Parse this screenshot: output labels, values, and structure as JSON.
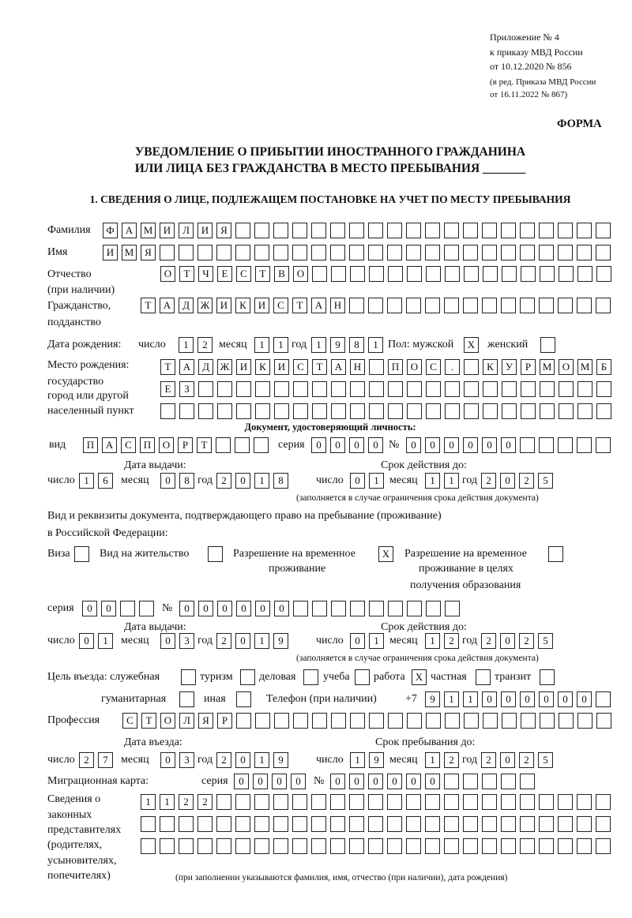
{
  "header": {
    "appendix": "Приложение № 4",
    "order": "к приказу МВД России",
    "order_date": "от 10.12.2020 № 856",
    "edition1": "(в ред. Приказа МВД России",
    "edition2": "от 16.11.2022 № 867)",
    "form_label": "ФОРМА",
    "title1": "УВЕДОМЛЕНИЕ О ПРИБЫТИИ ИНОСТРАННОГО ГРАЖДАНИНА",
    "title2": "ИЛИ ЛИЦА БЕЗ ГРАЖДАНСТВА В МЕСТО ПРЕБЫВАНИЯ _______"
  },
  "section1": {
    "heading": "1. СВЕДЕНИЯ О ЛИЦЕ, ПОДЛЕЖАЩЕМ ПОСТАНОВКЕ НА УЧЕТ ПО МЕСТУ ПРЕБЫВАНИЯ",
    "surname": {
      "label": "Фамилия",
      "boxes": [
        "Ф",
        "А",
        "М",
        "И",
        "Л",
        "И",
        "Я",
        "",
        "",
        "",
        "",
        "",
        "",
        "",
        "",
        "",
        "",
        "",
        "",
        "",
        "",
        "",
        "",
        "",
        "",
        "",
        ""
      ]
    },
    "name": {
      "label": "Имя",
      "boxes": [
        "И",
        "М",
        "Я",
        "",
        "",
        "",
        "",
        "",
        "",
        "",
        "",
        "",
        "",
        "",
        "",
        "",
        "",
        "",
        "",
        "",
        "",
        "",
        "",
        "",
        "",
        "",
        ""
      ]
    },
    "patronymic": {
      "label1": "Отчество",
      "label2": "(при наличии)",
      "boxes": [
        "О",
        "Т",
        "Ч",
        "Е",
        "С",
        "Т",
        "В",
        "О",
        "",
        "",
        "",
        "",
        "",
        "",
        "",
        "",
        "",
        "",
        "",
        "",
        "",
        "",
        "",
        ""
      ]
    },
    "citizenship": {
      "label1": "Гражданство,",
      "label2": "подданство",
      "boxes": [
        "Т",
        "А",
        "Д",
        "Ж",
        "И",
        "К",
        "И",
        "С",
        "Т",
        "А",
        "Н",
        "",
        "",
        "",
        "",
        "",
        "",
        "",
        "",
        "",
        "",
        "",
        "",
        "",
        ""
      ]
    },
    "birth_date": {
      "label": "Дата рождения:",
      "day_label": "число",
      "day": [
        "1",
        "2"
      ],
      "month_label": "месяц",
      "month": [
        "1",
        "1"
      ],
      "year_label": "год",
      "year": [
        "1",
        "9",
        "8",
        "1"
      ]
    },
    "sex": {
      "male_label": "Пол: мужской",
      "male": [
        "X"
      ],
      "female_label": "женский",
      "female": [
        ""
      ]
    },
    "birth_place": {
      "label1": "Место рождения:",
      "label2": "государство",
      "label3": "город или другой",
      "label4": "населенный пункт",
      "row1": [
        "Т",
        "А",
        "Д",
        "Ж",
        "И",
        "К",
        "И",
        "С",
        "Т",
        "А",
        "Н",
        "",
        "П",
        "О",
        "С",
        ".",
        "",
        "К",
        "У",
        "Р",
        "М",
        "О",
        "М",
        "Б"
      ],
      "row2": [
        "Е",
        "З",
        "",
        "",
        "",
        "",
        "",
        "",
        "",
        "",
        "",
        "",
        "",
        "",
        "",
        "",
        "",
        "",
        "",
        "",
        "",
        "",
        "",
        ""
      ],
      "row3": [
        "",
        "",
        "",
        "",
        "",
        "",
        "",
        "",
        "",
        "",
        "",
        "",
        "",
        "",
        "",
        "",
        "",
        "",
        "",
        "",
        "",
        "",
        "",
        ""
      ]
    },
    "id_doc": {
      "heading": "Документ, удостоверяющий личность:",
      "kind_label": "вид",
      "kind": [
        "П",
        "А",
        "С",
        "П",
        "О",
        "Р",
        "Т",
        "",
        "",
        ""
      ],
      "series_label": "серия",
      "series": [
        "0",
        "0",
        "0",
        "0"
      ],
      "number_label": "№",
      "number": [
        "0",
        "0",
        "0",
        "0",
        "0",
        "0",
        "",
        "",
        "",
        "",
        ""
      ],
      "issue_label": "Дата выдачи:",
      "valid_label": "Срок действия до:",
      "day_label": "число",
      "month_label": "месяц",
      "year_label": "год",
      "issue_day": [
        "1",
        "6"
      ],
      "issue_month": [
        "0",
        "8"
      ],
      "issue_year": [
        "2",
        "0",
        "1",
        "8"
      ],
      "valid_day": [
        "0",
        "1"
      ],
      "valid_month": [
        "1",
        "1"
      ],
      "valid_year": [
        "2",
        "0",
        "2",
        "5"
      ],
      "note": "(заполняется в случае ограничения срока действия документа)"
    },
    "stay_doc": {
      "label1": "Вид и реквизиты документа, подтверждающего право на пребывание (проживание)",
      "label2": "в Российской Федерации:",
      "visa_label": "Виза",
      "visa": [
        ""
      ],
      "residence_label": "Вид на жительство",
      "residence": [
        ""
      ],
      "trp_label1": "Разрешение на временное",
      "trp_label2": "проживание",
      "trp": [
        "X"
      ],
      "trp_edu_label1": "Разрешение на временное",
      "trp_edu_label2": "проживание в целях",
      "trp_edu_label3": "получения образования",
      "trp_edu": [
        ""
      ],
      "series_label": "серия",
      "series": [
        "0",
        "0",
        "",
        ""
      ],
      "number_label": "№",
      "number": [
        "0",
        "0",
        "0",
        "0",
        "0",
        "0",
        "",
        "",
        "",
        "",
        "",
        "",
        "",
        "",
        ""
      ],
      "issue_label": "Дата выдачи:",
      "valid_label": "Срок действия до:",
      "day_label": "число",
      "month_label": "месяц",
      "year_label": "год",
      "issue_day": [
        "0",
        "1"
      ],
      "issue_month": [
        "0",
        "3"
      ],
      "issue_year": [
        "2",
        "0",
        "1",
        "9"
      ],
      "valid_day": [
        "0",
        "1"
      ],
      "valid_month": [
        "1",
        "2"
      ],
      "valid_year": [
        "2",
        "0",
        "2",
        "5"
      ],
      "note": "(заполняется в случае ограничения срока действия документа)"
    },
    "purpose": {
      "label": "Цель въезда: служебная",
      "service": [
        ""
      ],
      "tourism_label": "туризм",
      "tourism": [
        ""
      ],
      "business_label": "деловая",
      "business": [
        ""
      ],
      "study_label": "учеба",
      "study": [
        ""
      ],
      "work_label": "работа",
      "work": [
        "X"
      ],
      "private_label": "частная",
      "private": [
        ""
      ],
      "transit_label": "транзит",
      "transit": [
        ""
      ],
      "humanitarian_label": "гуманитарная",
      "humanitarian": [
        ""
      ],
      "other_label": "иная",
      "other": [
        ""
      ]
    },
    "phone": {
      "label": "Телефон (при наличии)",
      "prefix": "+7",
      "boxes": [
        "9",
        "1",
        "1",
        "0",
        "0",
        "0",
        "0",
        "0",
        "0",
        ""
      ]
    },
    "profession": {
      "label": "Профессия",
      "boxes": [
        "С",
        "Т",
        "О",
        "Л",
        "Я",
        "Р",
        "",
        "",
        "",
        "",
        "",
        "",
        "",
        "",
        "",
        "",
        "",
        "",
        "",
        "",
        "",
        "",
        "",
        "",
        "",
        ""
      ]
    },
    "entry": {
      "entry_label": "Дата въезда:",
      "stay_label": "Срок пребывания до:",
      "day_label": "число",
      "month_label": "месяц",
      "year_label": "год",
      "entry_day": [
        "2",
        "7"
      ],
      "entry_month": [
        "0",
        "3"
      ],
      "entry_year": [
        "2",
        "0",
        "1",
        "9"
      ],
      "stay_day": [
        "1",
        "9"
      ],
      "stay_month": [
        "1",
        "2"
      ],
      "stay_year": [
        "2",
        "0",
        "2",
        "5"
      ]
    },
    "migration_card": {
      "label": "Миграционная карта:",
      "series_label": "серия",
      "series": [
        "0",
        "0",
        "0",
        "0"
      ],
      "number_label": "№",
      "number": [
        "0",
        "0",
        "0",
        "0",
        "0",
        "0",
        "",
        "",
        "",
        "",
        ""
      ]
    },
    "representatives": {
      "label1": "Сведения о",
      "label2": "законных",
      "label3": "представителях",
      "label4": "(родителях,",
      "label5": "усыновителях,",
      "label6": "попечителях)",
      "row1": [
        "1",
        "1",
        "2",
        "2",
        "",
        "",
        "",
        "",
        "",
        "",
        "",
        "",
        "",
        "",
        "",
        "",
        "",
        "",
        "",
        "",
        "",
        "",
        "",
        "",
        ""
      ],
      "row2": [
        "",
        "",
        "",
        "",
        "",
        "",
        "",
        "",
        "",
        "",
        "",
        "",
        "",
        "",
        "",
        "",
        "",
        "",
        "",
        "",
        "",
        "",
        "",
        "",
        ""
      ],
      "row3": [
        "",
        "",
        "",
        "",
        "",
        "",
        "",
        "",
        "",
        "",
        "",
        "",
        "",
        "",
        "",
        "",
        "",
        "",
        "",
        "",
        "",
        "",
        "",
        "",
        ""
      ],
      "note": "(при заполнении указываются фамилия, имя, отчество (при наличии), дата рождения)"
    }
  }
}
